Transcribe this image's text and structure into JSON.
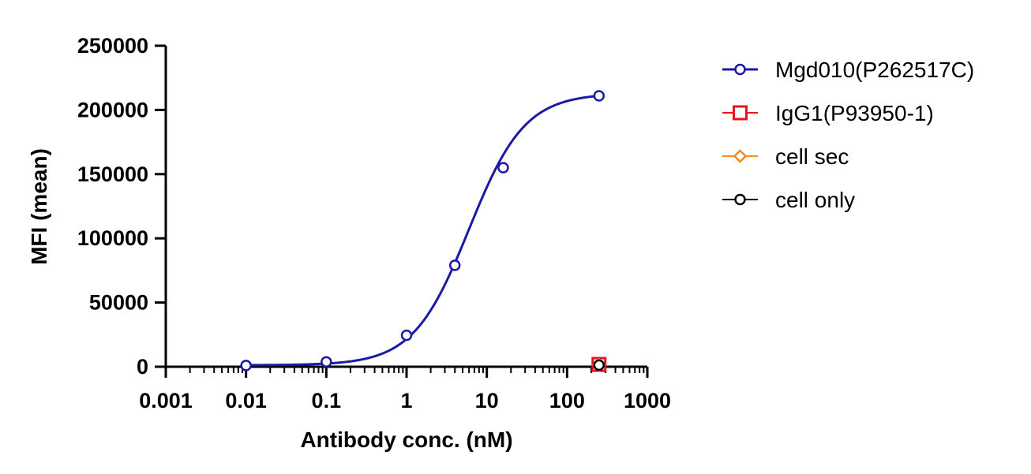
{
  "chart_data": {
    "type": "scatter",
    "title": "",
    "xlabel": "Antibody conc. (nM)",
    "ylabel": "MFI (mean)",
    "xscale": "log",
    "xlim": [
      0.001,
      1000
    ],
    "ylim": [
      0,
      250000
    ],
    "x_ticks": [
      "0.001",
      "0.01",
      "0.1",
      "1",
      "10",
      "100",
      "1000"
    ],
    "y_ticks": [
      "0",
      "50000",
      "100000",
      "150000",
      "200000",
      "250000"
    ],
    "grid": false,
    "legend_position": "right",
    "series": [
      {
        "name": "Mgd010(P262517C)",
        "color": "#1a1aa6",
        "marker": "circle",
        "fitted_curve": "sigmoidal 4PL",
        "curve_params": {
          "bottom": 1200,
          "top": 213000,
          "ec50": 6.0,
          "hill": 1.25
        },
        "x": [
          0.01,
          0.1,
          1,
          4,
          16,
          250
        ],
        "y": [
          1000,
          3800,
          24500,
          79000,
          155000,
          211000
        ]
      },
      {
        "name": "IgG1(P93950-1)",
        "color": "#e8141b",
        "marker": "square",
        "x": [
          250
        ],
        "y": [
          1800
        ]
      },
      {
        "name": "cell sec",
        "color": "#f58a1f",
        "marker": "diamond",
        "x": [
          250
        ],
        "y": [
          1500
        ]
      },
      {
        "name": "cell only",
        "color": "#000000",
        "marker": "circle",
        "x": [
          250
        ],
        "y": [
          1300
        ]
      }
    ]
  }
}
